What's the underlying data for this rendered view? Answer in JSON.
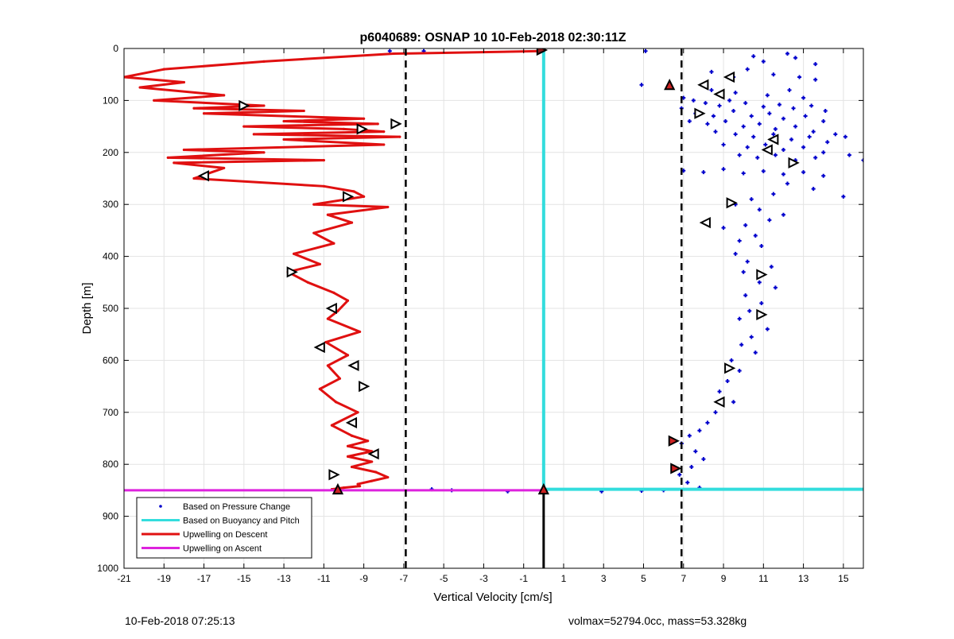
{
  "chart_data": {
    "type": "scatter",
    "title": "p6040689: OSNAP 10 10-Feb-2018 02:30:11Z",
    "xlabel": "Vertical Velocity [cm/s]",
    "ylabel": "Depth [m]",
    "xlim": [
      -21,
      16
    ],
    "ylim": [
      1000,
      0
    ],
    "y_reversed": true,
    "grid": true,
    "xticks": [
      -21,
      -19,
      -17,
      -15,
      -13,
      -11,
      -9,
      -7,
      -5,
      -3,
      -1,
      1,
      3,
      5,
      7,
      9,
      11,
      13,
      15
    ],
    "yticks": [
      0,
      100,
      200,
      300,
      400,
      500,
      600,
      700,
      800,
      900,
      1000
    ],
    "legend_position": "bottom-left",
    "series": [
      {
        "name": "Based on Pressure Change",
        "style": "points",
        "color": "#0000cc",
        "points": [
          [
            -7.7,
            5
          ],
          [
            -6.0,
            5
          ],
          [
            5.1,
            5
          ],
          [
            10.5,
            15
          ],
          [
            12.2,
            10
          ],
          [
            12.6,
            18
          ],
          [
            11.0,
            25
          ],
          [
            13.6,
            30
          ],
          [
            8.4,
            45
          ],
          [
            9.5,
            55
          ],
          [
            10.2,
            40
          ],
          [
            11.5,
            50
          ],
          [
            12.8,
            55
          ],
          [
            13.6,
            60
          ],
          [
            4.9,
            70
          ],
          [
            8.4,
            80
          ],
          [
            9.6,
            85
          ],
          [
            11.2,
            90
          ],
          [
            12.3,
            80
          ],
          [
            13.0,
            95
          ],
          [
            7.0,
            95
          ],
          [
            7.5,
            100
          ],
          [
            8.1,
            105
          ],
          [
            8.8,
            110
          ],
          [
            9.3,
            100
          ],
          [
            10.1,
            105
          ],
          [
            11.0,
            112
          ],
          [
            11.8,
            108
          ],
          [
            12.5,
            115
          ],
          [
            13.4,
            110
          ],
          [
            14.1,
            120
          ],
          [
            6.9,
            115
          ],
          [
            7.6,
            125
          ],
          [
            8.5,
            130
          ],
          [
            9.5,
            120
          ],
          [
            10.4,
            130
          ],
          [
            11.3,
            125
          ],
          [
            12.0,
            135
          ],
          [
            13.1,
            130
          ],
          [
            14.0,
            140
          ],
          [
            7.3,
            140
          ],
          [
            8.2,
            145
          ],
          [
            9.1,
            140
          ],
          [
            10.0,
            150
          ],
          [
            10.8,
            145
          ],
          [
            11.6,
            155
          ],
          [
            12.6,
            150
          ],
          [
            13.5,
            160
          ],
          [
            14.6,
            165
          ],
          [
            15.1,
            170
          ],
          [
            8.6,
            160
          ],
          [
            9.6,
            165
          ],
          [
            10.5,
            170
          ],
          [
            11.5,
            165
          ],
          [
            12.4,
            175
          ],
          [
            13.3,
            170
          ],
          [
            14.2,
            180
          ],
          [
            9.0,
            185
          ],
          [
            10.2,
            190
          ],
          [
            11.1,
            185
          ],
          [
            12.0,
            195
          ],
          [
            13.0,
            190
          ],
          [
            14.0,
            200
          ],
          [
            15.3,
            205
          ],
          [
            16.0,
            215
          ],
          [
            9.8,
            205
          ],
          [
            10.7,
            210
          ],
          [
            11.6,
            205
          ],
          [
            12.6,
            215
          ],
          [
            13.6,
            210
          ],
          [
            7.0,
            235
          ],
          [
            8.0,
            238
          ],
          [
            9.0,
            232
          ],
          [
            10.0,
            240
          ],
          [
            11.0,
            236
          ],
          [
            12.0,
            242
          ],
          [
            13.0,
            238
          ],
          [
            14.0,
            245
          ],
          [
            15.0,
            285
          ],
          [
            13.5,
            270
          ],
          [
            12.2,
            260
          ],
          [
            11.5,
            280
          ],
          [
            10.4,
            290
          ],
          [
            9.6,
            300
          ],
          [
            10.8,
            310
          ],
          [
            12.0,
            320
          ],
          [
            11.3,
            330
          ],
          [
            10.1,
            340
          ],
          [
            9.0,
            345
          ],
          [
            10.6,
            360
          ],
          [
            9.8,
            370
          ],
          [
            10.9,
            380
          ],
          [
            9.6,
            395
          ],
          [
            10.2,
            410
          ],
          [
            11.4,
            420
          ],
          [
            10.0,
            430
          ],
          [
            10.8,
            450
          ],
          [
            11.6,
            460
          ],
          [
            10.1,
            475
          ],
          [
            10.9,
            490
          ],
          [
            10.3,
            505
          ],
          [
            9.8,
            520
          ],
          [
            11.2,
            540
          ],
          [
            10.4,
            555
          ],
          [
            9.9,
            570
          ],
          [
            10.6,
            585
          ],
          [
            9.4,
            600
          ],
          [
            9.8,
            620
          ],
          [
            9.2,
            640
          ],
          [
            8.8,
            660
          ],
          [
            9.5,
            680
          ],
          [
            8.6,
            700
          ],
          [
            8.2,
            720
          ],
          [
            7.8,
            735
          ],
          [
            7.3,
            745
          ],
          [
            6.9,
            760
          ],
          [
            7.6,
            775
          ],
          [
            8.0,
            790
          ],
          [
            7.4,
            805
          ],
          [
            6.8,
            820
          ],
          [
            7.2,
            835
          ],
          [
            7.8,
            845
          ],
          [
            -5.6,
            848
          ],
          [
            -4.6,
            850
          ],
          [
            -1.8,
            852
          ],
          [
            2.9,
            852
          ],
          [
            4.9,
            851
          ],
          [
            6.0,
            850
          ]
        ]
      },
      {
        "name": "Based on Buoyancy and Pitch",
        "style": "line",
        "color": "#33dddd",
        "x": [
          0,
          0,
          16
        ],
        "y": [
          0,
          848,
          848
        ]
      },
      {
        "name": "Upwelling on Descent",
        "style": "line",
        "color": "#e01010",
        "x": [
          -0.1,
          -7.5,
          -14,
          -19,
          -21,
          -18,
          -20.2,
          -16,
          -19.5,
          -14,
          -17.5,
          -12,
          -17,
          -9,
          -13,
          -8.3,
          -15,
          -10,
          -8,
          -14.5,
          -7.2,
          -13,
          -8,
          -18,
          -14,
          -18.8,
          -11,
          -18.5,
          -16,
          -17.5,
          -11,
          -9.5,
          -9,
          -11.5,
          -7.8,
          -10.8,
          -9.6,
          -11.5,
          -10.5,
          -12.5,
          -11.2,
          -12.8,
          -11.8,
          -10.5,
          -9.8,
          -10.3,
          -10.8,
          -9.2,
          -10.9,
          -9.8,
          -10.8,
          -10.2,
          -11.2,
          -10.4,
          -9.3,
          -10.6,
          -9.6,
          -8.8,
          -9.8,
          -8.6,
          -9.8,
          -8.6,
          -9.6,
          -8.4,
          -7.8,
          -8.6,
          -9.3,
          -9.2,
          -10.0,
          -10.6,
          -10.2,
          -10.3
        ],
        "y": [
          5,
          10,
          25,
          40,
          55,
          65,
          75,
          90,
          100,
          110,
          115,
          120,
          125,
          135,
          140,
          145,
          150,
          155,
          160,
          165,
          170,
          175,
          185,
          195,
          200,
          210,
          215,
          220,
          230,
          250,
          265,
          275,
          285,
          300,
          305,
          320,
          335,
          355,
          375,
          395,
          415,
          430,
          450,
          470,
          485,
          505,
          520,
          545,
          565,
          590,
          610,
          635,
          655,
          680,
          700,
          725,
          745,
          755,
          765,
          775,
          785,
          795,
          805,
          815,
          825,
          832,
          838,
          842,
          845,
          848,
          848,
          848
        ]
      },
      {
        "name": "Upwelling on Ascent",
        "style": "line",
        "color": "#dd22dd",
        "x": [
          -21,
          0
        ],
        "y": [
          850,
          850
        ]
      },
      {
        "name": "",
        "style": "dashed",
        "color": "#000000",
        "x": [
          -6.9,
          -6.9
        ],
        "y": [
          0,
          1000
        ]
      },
      {
        "name": "",
        "style": "dashed",
        "color": "#000000",
        "x": [
          6.9,
          6.9
        ],
        "y": [
          0,
          1000
        ]
      },
      {
        "name": "",
        "style": "line",
        "color": "#000000",
        "x": [
          0,
          0
        ],
        "y": [
          850,
          1000
        ]
      }
    ],
    "markers": [
      {
        "x": -0.1,
        "y": 3,
        "dir": "right",
        "fill": "#8b1a1a"
      },
      {
        "x": 6.3,
        "y": 70,
        "dir": "up",
        "fill": "#cc2222"
      },
      {
        "x": -15.0,
        "y": 110,
        "dir": "right",
        "fill": "#ffffff"
      },
      {
        "x": -7.4,
        "y": 145,
        "dir": "right",
        "fill": "#ffffff"
      },
      {
        "x": -9.1,
        "y": 155,
        "dir": "right",
        "fill": "#ffffff"
      },
      {
        "x": -17.0,
        "y": 245,
        "dir": "left",
        "fill": "#ffffff"
      },
      {
        "x": -9.8,
        "y": 285,
        "dir": "right",
        "fill": "#ffffff"
      },
      {
        "x": -12.6,
        "y": 430,
        "dir": "right",
        "fill": "#ffffff"
      },
      {
        "x": -10.6,
        "y": 500,
        "dir": "left",
        "fill": "#ffffff"
      },
      {
        "x": -11.2,
        "y": 575,
        "dir": "left",
        "fill": "#ffffff"
      },
      {
        "x": -9.5,
        "y": 610,
        "dir": "left",
        "fill": "#ffffff"
      },
      {
        "x": -9.0,
        "y": 650,
        "dir": "right",
        "fill": "#ffffff"
      },
      {
        "x": -9.6,
        "y": 720,
        "dir": "left",
        "fill": "#ffffff"
      },
      {
        "x": -8.5,
        "y": 780,
        "dir": "left",
        "fill": "#ffffff"
      },
      {
        "x": -10.5,
        "y": 820,
        "dir": "right",
        "fill": "#ffffff"
      },
      {
        "x": -10.3,
        "y": 848,
        "dir": "up",
        "fill": "#cc2222"
      },
      {
        "x": 0,
        "y": 848,
        "dir": "up",
        "fill": "#cc2222"
      },
      {
        "x": 9.3,
        "y": 55,
        "dir": "left",
        "fill": "#ffffff"
      },
      {
        "x": 8.0,
        "y": 70,
        "dir": "left",
        "fill": "#ffffff"
      },
      {
        "x": 8.8,
        "y": 88,
        "dir": "left",
        "fill": "#ffffff"
      },
      {
        "x": 7.8,
        "y": 125,
        "dir": "right",
        "fill": "#ffffff"
      },
      {
        "x": 11.5,
        "y": 175,
        "dir": "left",
        "fill": "#ffffff"
      },
      {
        "x": 11.2,
        "y": 195,
        "dir": "left",
        "fill": "#ffffff"
      },
      {
        "x": 12.5,
        "y": 220,
        "dir": "right",
        "fill": "#ffffff"
      },
      {
        "x": 9.4,
        "y": 297,
        "dir": "right",
        "fill": "#ffffff"
      },
      {
        "x": 8.1,
        "y": 335,
        "dir": "left",
        "fill": "#ffffff"
      },
      {
        "x": 10.9,
        "y": 435,
        "dir": "right",
        "fill": "#ffffff"
      },
      {
        "x": 10.9,
        "y": 512,
        "dir": "right",
        "fill": "#ffffff"
      },
      {
        "x": 9.3,
        "y": 615,
        "dir": "right",
        "fill": "#ffffff"
      },
      {
        "x": 8.8,
        "y": 680,
        "dir": "left",
        "fill": "#ffffff"
      },
      {
        "x": 6.5,
        "y": 755,
        "dir": "right",
        "fill": "#cc2222"
      },
      {
        "x": 6.6,
        "y": 808,
        "dir": "right",
        "fill": "#cc2222"
      }
    ]
  },
  "footer": {
    "left": "10-Feb-2018 07:25:13",
    "right": "volmax=52794.0cc, mass=53.328kg"
  }
}
